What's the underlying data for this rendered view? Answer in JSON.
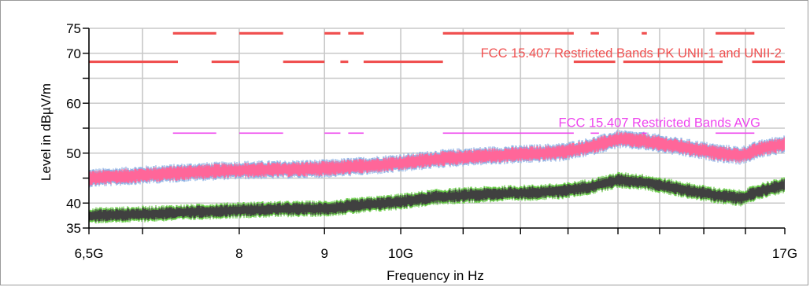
{
  "chart_data": {
    "type": "line",
    "title": "",
    "xlabel": "Frequency in Hz",
    "ylabel": "Level in dBµV/m",
    "x_scale": "log",
    "xlim": [
      6.5,
      17
    ],
    "ylim": [
      35,
      75
    ],
    "x_unit": "GHz",
    "x_ticks": [
      {
        "value": 6.5,
        "label": "6,5G"
      },
      {
        "value": 8,
        "label": "8"
      },
      {
        "value": 9,
        "label": "9"
      },
      {
        "value": 10,
        "label": "10G"
      },
      {
        "value": 17,
        "label": "17G"
      }
    ],
    "x_minor_gridlines": [
      7,
      10.9,
      11.8,
      12.6,
      13.5,
      14.3,
      15.2,
      16.1
    ],
    "y_ticks": [
      {
        "value": 35,
        "label": "35"
      },
      {
        "value": 40,
        "label": "40"
      },
      {
        "value": 50,
        "label": "50"
      },
      {
        "value": 60,
        "label": "60"
      },
      {
        "value": 70,
        "label": "70"
      },
      {
        "value": 75,
        "label": "75"
      }
    ],
    "y_gridlines": [
      40,
      45,
      50,
      55,
      60,
      65,
      70,
      75
    ],
    "grid": true,
    "limit_lines": [
      {
        "label": "FCC 15.407 Restricted Bands PK UNII-1 and UNII-2",
        "color": "#f05050",
        "segments": [
          {
            "level": 74,
            "x": [
              [
                7.3,
                7.75
              ],
              [
                8.0,
                8.5
              ],
              [
                9.0,
                9.2
              ],
              [
                9.3,
                9.5
              ],
              [
                10.6,
                12.7
              ],
              [
                13.0,
                13.15
              ],
              [
                13.95,
                14.05
              ],
              [
                15.45,
                16.3
              ]
            ]
          },
          {
            "level": 68.3,
            "x": [
              [
                6.5,
                7.35
              ],
              [
                7.7,
                8.0
              ],
              [
                8.5,
                9.0
              ],
              [
                9.2,
                9.3
              ],
              [
                9.5,
                10.6
              ],
              [
                12.7,
                13.45
              ],
              [
                13.6,
                15.6
              ],
              [
                16.25,
                17.0
              ]
            ]
          }
        ]
      },
      {
        "label": "FCC 15.407 Restricted Bands AVG",
        "color": "#ee44ee",
        "segments": [
          {
            "level": 54,
            "x": [
              [
                7.3,
                7.75
              ],
              [
                8.0,
                8.5
              ],
              [
                9.0,
                9.2
              ],
              [
                9.3,
                9.5
              ],
              [
                10.6,
                12.7
              ],
              [
                13.0,
                13.15
              ],
              [
                13.95,
                14.05
              ],
              [
                15.45,
                16.3
              ]
            ]
          }
        ]
      }
    ],
    "series": [
      {
        "color": "#ff6699",
        "edge_color": "#8fb4e6",
        "band_width_db": 2.8,
        "x": [
          6.5,
          7.0,
          7.5,
          8.0,
          8.5,
          9.0,
          9.5,
          10.0,
          10.5,
          11.0,
          11.5,
          12.0,
          12.5,
          13.0,
          13.5,
          14.0,
          14.5,
          15.0,
          15.5,
          16.0,
          16.5,
          17.0
        ],
        "y": [
          45,
          45.6,
          46.2,
          46.6,
          46.7,
          46.9,
          47.4,
          48.0,
          48.8,
          49.3,
          49.6,
          49.9,
          50.2,
          51.3,
          52.8,
          52.4,
          51.6,
          50.8,
          50.0,
          49.5,
          51.0,
          51.8
        ]
      },
      {
        "color": "#404040",
        "edge_color": "#66cc44",
        "band_width_db": 2.4,
        "x": [
          6.5,
          7.0,
          7.5,
          8.0,
          8.5,
          9.0,
          9.5,
          10.0,
          10.5,
          11.0,
          11.5,
          12.0,
          12.5,
          13.0,
          13.5,
          14.0,
          14.5,
          15.0,
          15.5,
          16.0,
          16.5,
          17.0
        ],
        "y": [
          37.5,
          37.8,
          38.2,
          38.6,
          38.8,
          38.9,
          39.6,
          40.3,
          41.2,
          41.6,
          41.9,
          42.1,
          42.4,
          43.3,
          44.6,
          44.2,
          43.2,
          42.3,
          41.5,
          41.0,
          42.6,
          43.6
        ]
      }
    ]
  }
}
